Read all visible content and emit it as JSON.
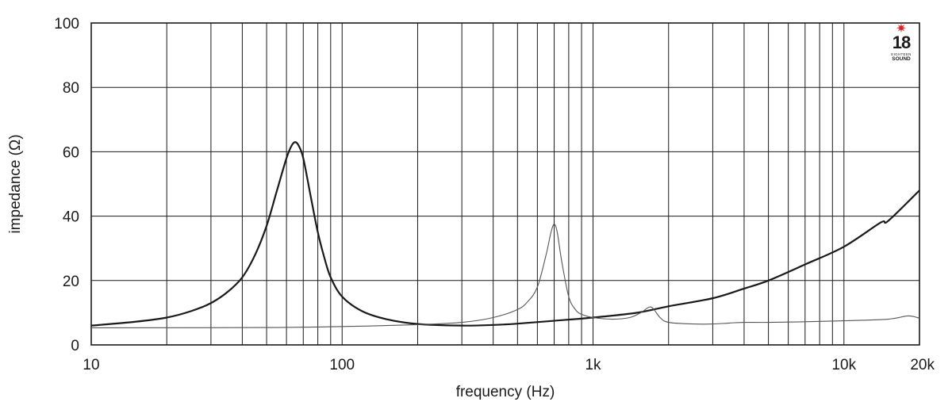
{
  "chart_data": {
    "type": "line",
    "xlabel": "frequency (Hz)",
    "ylabel": "impedance (Ω)",
    "x_scale": "log",
    "xlim": [
      10,
      20000
    ],
    "ylim": [
      0,
      100
    ],
    "grid": true,
    "y_ticks": [
      0,
      20,
      40,
      60,
      80,
      100
    ],
    "x_tick_labels": [
      {
        "value": 10,
        "label": "10"
      },
      {
        "value": 100,
        "label": "100"
      },
      {
        "value": 1000,
        "label": "1k"
      },
      {
        "value": 10000,
        "label": "10k"
      },
      {
        "value": 20000,
        "label": "20k"
      }
    ],
    "logo": {
      "mark": "✷",
      "number": "18",
      "line1": "EIGHTEEN",
      "line2": "SOUND"
    },
    "series": [
      {
        "color": "#1a1a1a",
        "x": [
          10,
          15,
          20,
          25,
          30,
          35,
          40,
          45,
          50,
          55,
          60,
          63,
          65,
          67,
          70,
          75,
          80,
          85,
          90,
          100,
          120,
          150,
          200,
          300,
          400,
          500,
          700,
          1000,
          1500,
          2000,
          3000,
          4000,
          5000,
          7000,
          10000,
          14000,
          15000,
          20000
        ],
        "y": [
          6,
          7.2,
          8.5,
          10.5,
          13,
          16.5,
          21,
          28,
          37,
          48,
          58,
          62,
          63,
          62,
          58,
          46,
          35,
          27,
          21,
          15,
          10.5,
          8,
          6.5,
          6,
          6.2,
          6.6,
          7.5,
          8.5,
          10,
          12,
          14.5,
          17.5,
          20,
          25,
          30.5,
          38,
          38.5,
          48
        ]
      },
      {
        "color": "#555555",
        "x": [
          10,
          50,
          100,
          200,
          300,
          400,
          500,
          550,
          600,
          650,
          680,
          700,
          720,
          750,
          800,
          850,
          900,
          1000,
          1200,
          1400,
          1550,
          1650,
          1700,
          1750,
          1850,
          2000,
          2500,
          3000,
          3500,
          4000,
          5000,
          7000,
          10000,
          15000,
          18000,
          20000
        ],
        "y": [
          5.3,
          5.4,
          5.7,
          6.3,
          7,
          8.5,
          11,
          13.5,
          18,
          28,
          35,
          37.5,
          35,
          26,
          15,
          11,
          9.5,
          8.5,
          8,
          8.5,
          10,
          11.5,
          11.8,
          11,
          8.5,
          7,
          6.5,
          6.5,
          6.8,
          7,
          7,
          7.2,
          7.5,
          8,
          9,
          8.3
        ]
      }
    ]
  }
}
